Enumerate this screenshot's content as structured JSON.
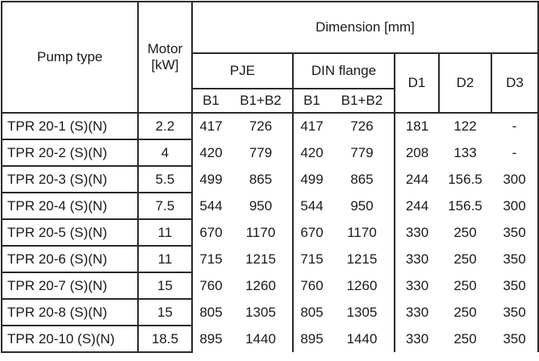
{
  "header": {
    "pump_type": "Pump type",
    "motor": "Motor [kW]",
    "dimension": "Dimension [mm]",
    "pje": "PJE",
    "din_flange": "DIN flange",
    "d1": "D1",
    "d2": "D2",
    "d3": "D3",
    "sub": [
      "B1",
      "B1+B2",
      "B1",
      "B1+B2"
    ]
  },
  "table": {
    "rows": [
      [
        "TPR 20-1 (S)(N)",
        "2.2",
        "417",
        "726",
        "417",
        "726",
        "181",
        "122",
        "-"
      ],
      [
        "TPR 20-2 (S)(N)",
        "4",
        "420",
        "779",
        "420",
        "779",
        "208",
        "133",
        "-"
      ],
      [
        "TPR 20-3 (S)(N)",
        "5.5",
        "499",
        "865",
        "499",
        "865",
        "244",
        "156.5",
        "300"
      ],
      [
        "TPR 20-4 (S)(N)",
        "7.5",
        "544",
        "950",
        "544",
        "950",
        "244",
        "156.5",
        "300"
      ],
      [
        "TPR 20-5 (S)(N)",
        "11",
        "670",
        "1170",
        "670",
        "1170",
        "330",
        "250",
        "350"
      ],
      [
        "TPR 20-6 (S)(N)",
        "11",
        "715",
        "1215",
        "715",
        "1215",
        "330",
        "250",
        "350"
      ],
      [
        "TPR 20-7 (S)(N)",
        "15",
        "760",
        "1260",
        "760",
        "1260",
        "330",
        "250",
        "350"
      ],
      [
        "TPR 20-8 (S)(N)",
        "15",
        "805",
        "1305",
        "805",
        "1305",
        "330",
        "250",
        "350"
      ],
      [
        "TPR 20-10 (S)(N)",
        "18.5",
        "895",
        "1440",
        "895",
        "1440",
        "330",
        "250",
        "350"
      ]
    ]
  }
}
